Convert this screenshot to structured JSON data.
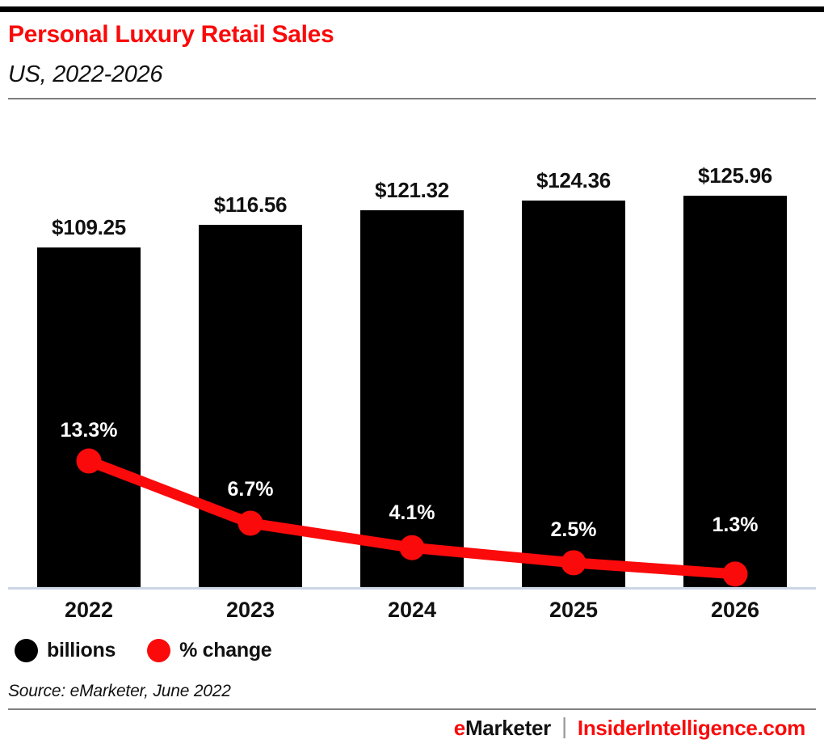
{
  "header": {
    "title": "Personal Luxury Retail Sales",
    "subtitle": "US, 2022-2026"
  },
  "chart_data": {
    "type": "bar",
    "title": "Personal Luxury Retail Sales",
    "subtitle": "US, 2022-2026",
    "categories": [
      "2022",
      "2023",
      "2024",
      "2025",
      "2026"
    ],
    "series": [
      {
        "name": "billions",
        "type": "bar",
        "unit": "US$ billions",
        "values": [
          109.25,
          116.56,
          121.32,
          124.36,
          125.96
        ],
        "labels": [
          "$109.25",
          "$116.56",
          "$121.32",
          "$124.36",
          "$125.96"
        ],
        "color": "#000000"
      },
      {
        "name": "% change",
        "type": "line",
        "unit": "percent",
        "values": [
          13.3,
          6.7,
          4.1,
          2.5,
          1.3
        ],
        "labels": [
          "13.3%",
          "6.7%",
          "4.1%",
          "2.5%",
          "1.3%"
        ],
        "color": "#fa0a0a"
      }
    ],
    "legend": [
      {
        "label": "billions",
        "color": "#000000"
      },
      {
        "label": "% change",
        "color": "#fa0a0a"
      }
    ],
    "legend_position": "bottom",
    "grid": false,
    "bar_axis_range": [
      0,
      130
    ],
    "line_axis_range": [
      0,
      15
    ]
  },
  "source": "Source: eMarketer, June 2022",
  "footer": {
    "brand_accent": "e",
    "brand_rest": "Marketer",
    "separator": "|",
    "site": "InsiderIntelligence.com"
  },
  "colors": {
    "accent_red": "#fa0a0a",
    "bar_black": "#000000",
    "baseline_blue_gray": "#ccd6e6",
    "rule_gray": "#7f7f7f"
  }
}
